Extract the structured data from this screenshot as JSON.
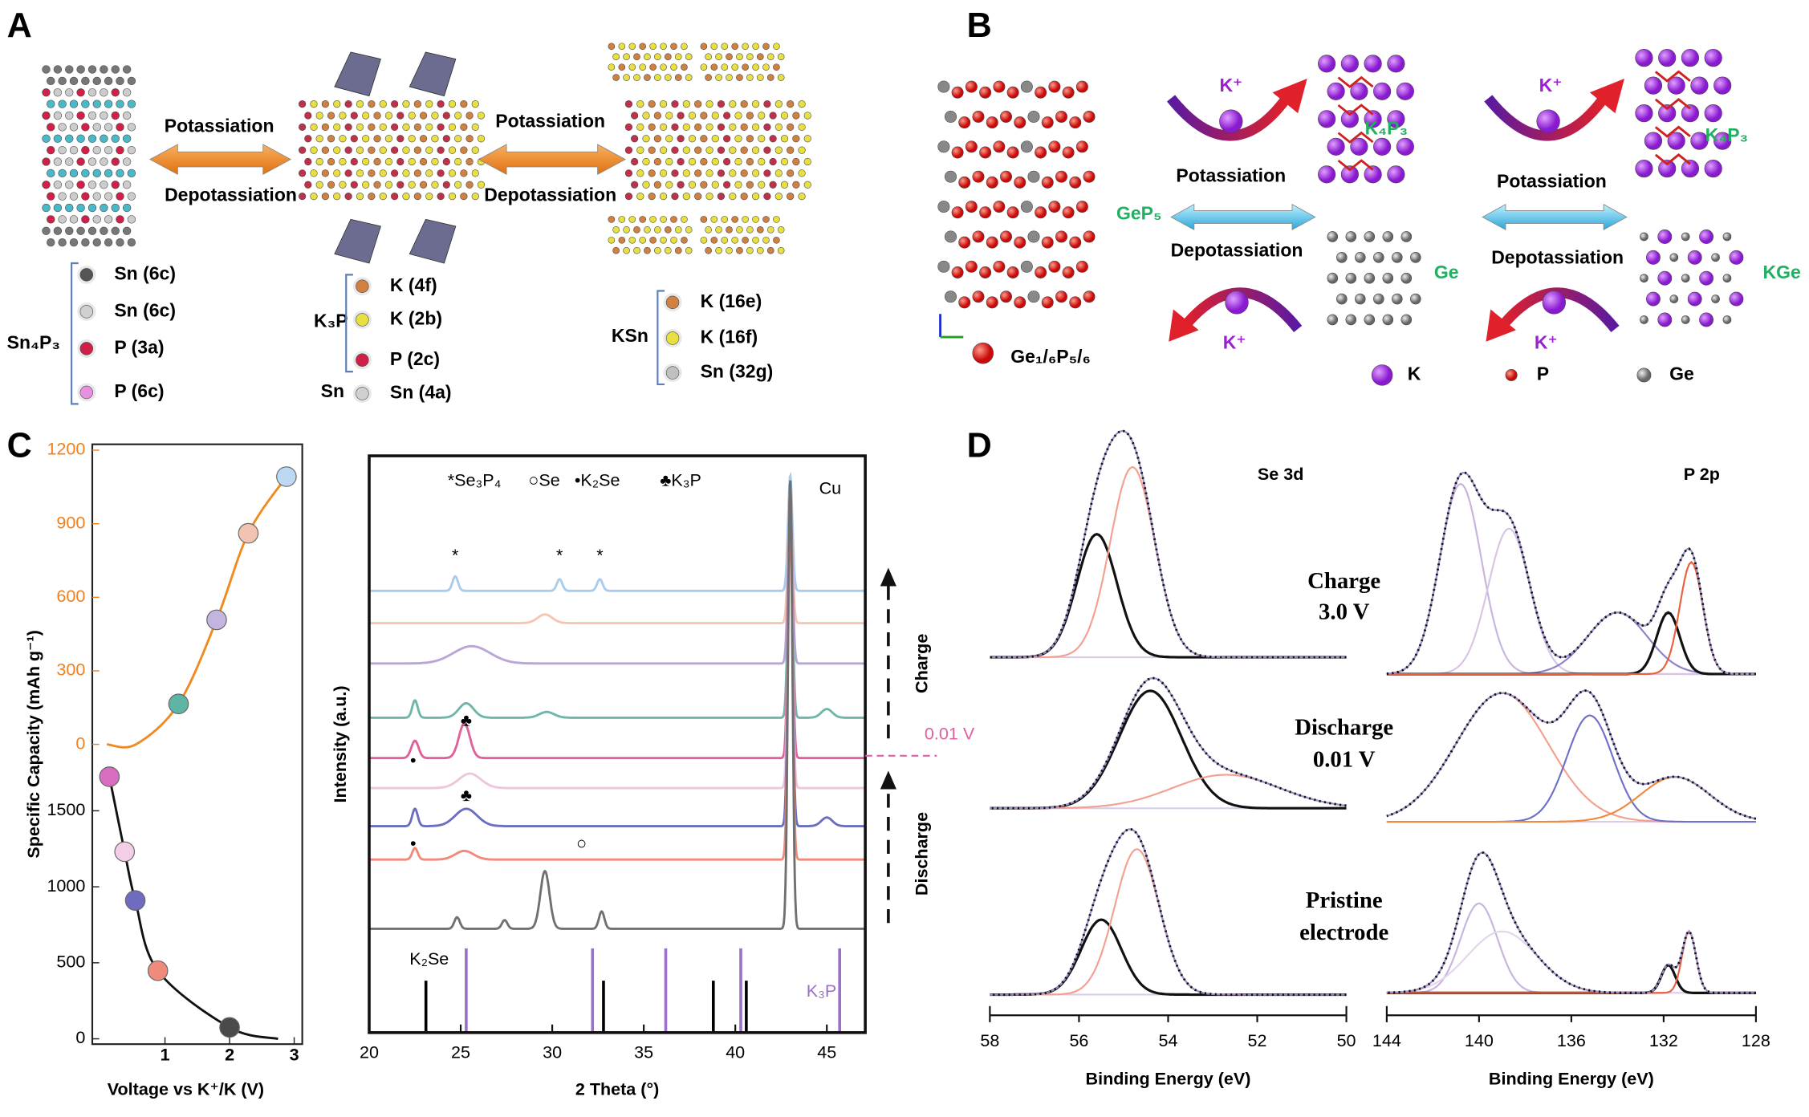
{
  "panel_a": {
    "label": "A",
    "potassiation": [
      "Potassiation",
      "Potassiation"
    ],
    "depotassiation": [
      "Depotassiation",
      "Depotassiation"
    ],
    "phases": [
      {
        "name": "Sn₄P₃",
        "sites": [
          "Sn (6c)",
          "Sn (6c)",
          "P (3a)",
          "P (6c)"
        ]
      },
      {
        "name": "K₃P",
        "sites": [
          "K (4f)",
          "K (2b)",
          "P (2c)"
        ]
      },
      {
        "name": "Sn",
        "sites": [
          "Sn (4a)"
        ]
      },
      {
        "name": "KSn",
        "sites": [
          "K (16e)",
          "K (16f)",
          "Sn (32g)"
        ]
      }
    ]
  },
  "panel_b": {
    "label": "B",
    "ion": [
      "K⁺",
      "K⁺",
      "K⁺",
      "K⁺"
    ],
    "potassiation": [
      "Potassiation",
      "Potassiation"
    ],
    "depotassiation": [
      "Depotassiation",
      "Depotassiation"
    ],
    "start": "GeP₅",
    "products": [
      "K₄P₃",
      "Ge",
      "K₄P₃",
      "KGe"
    ],
    "structure": "Ge₁/₆P₅/₆",
    "legend": [
      "K",
      "P",
      "Ge"
    ]
  },
  "panel_c": {
    "label": "C",
    "charge": "Charge",
    "discharge": "Discharge",
    "marker": "0.01 V"
  },
  "panel_d": {
    "label": "D",
    "states": [
      [
        "Charge",
        "3.0  V"
      ],
      [
        "Discharge",
        "0.01 V"
      ],
      [
        "Pristine",
        "electrode"
      ]
    ]
  },
  "chart_data": [
    {
      "type": "line",
      "xlabel": "Voltage vs K⁺/K (V)",
      "ylabel": "Specific Capacity (mAh g⁻¹)",
      "xlim": [
        -0.125,
        3.125
      ],
      "xticks": [
        1,
        2,
        3
      ],
      "ylim": [
        -35,
        1900
      ],
      "yticks": [
        0,
        500,
        1000,
        1500
      ],
      "y2lim": [
        -70,
        1224
      ],
      "y2ticks": [
        0,
        300,
        600,
        900,
        1200
      ],
      "y2color": "#f08020",
      "series": [
        {
          "color": "#111111",
          "x": [
            0.14,
            0.375,
            0.54,
            0.89,
            2.0,
            2.75
          ],
          "values": [
            1724,
            1231,
            910,
            448,
            75,
            0
          ],
          "marker_colors": [
            "#d86cc0",
            "#f2cfe6",
            "#6f6cbf",
            "#f08a7c",
            "#4a4a4a",
            null
          ]
        },
        {
          "color": "#f08a20",
          "axis": "y2",
          "x": [
            0.1,
            0.55,
            1.21,
            1.8,
            2.29,
            2.88
          ],
          "values": [
            0,
            0,
            165,
            508,
            861,
            1092
          ],
          "marker_colors": [
            null,
            null,
            "#5fb5a5",
            "#c4b4e0",
            "#f2c3b0",
            "#bcd8f2"
          ]
        }
      ]
    },
    {
      "type": "xrd",
      "xlabel": "2 Theta (°)",
      "ylabel": "Intensity (a.u.)",
      "xlim": [
        20,
        47.1
      ],
      "xticks": [
        20,
        25,
        30,
        35,
        40,
        45
      ],
      "ylim": [
        0,
        100
      ],
      "legend": [
        "*Se₃P₄",
        "○Se",
        "•K₂Se",
        "♣K₃P"
      ],
      "peak_label": "Cu",
      "marker_level": 48,
      "traces": [
        {
          "color": "#a9cbec",
          "offset": 76.6,
          "peaks": [
            [
              24.7,
              2.5,
              0.15
            ],
            [
              30.4,
              2,
              0.15
            ],
            [
              32.6,
              2,
              0.15
            ],
            [
              43,
              20,
              0.12
            ]
          ]
        },
        {
          "color": "#f6c6b2",
          "offset": 71,
          "peaks": [
            [
              29.6,
              1.5,
              0.4
            ],
            [
              43,
              22,
              0.12
            ]
          ]
        },
        {
          "color": "#b9a6d6",
          "offset": 64,
          "peaks": [
            [
              25.6,
              3,
              1.0
            ],
            [
              43,
              30,
              0.12
            ]
          ]
        },
        {
          "color": "#6fb6a8",
          "offset": 54.6,
          "peaks": [
            [
              22.5,
              3,
              0.15
            ],
            [
              25.3,
              2.5,
              0.4
            ],
            [
              29.7,
              1,
              0.4
            ],
            [
              43,
              40,
              0.12
            ],
            [
              45,
              1.5,
              0.3
            ]
          ]
        },
        {
          "color": "#e0609a",
          "offset": 47.6,
          "peaks": [
            [
              22.5,
              3,
              0.2
            ],
            [
              25.2,
              6,
              0.3
            ],
            [
              43,
              47,
              0.12
            ]
          ]
        },
        {
          "color": "#eec6dc",
          "offset": 42.4,
          "peaks": [
            [
              25.5,
              2.5,
              0.6
            ],
            [
              43,
              50,
              0.12
            ]
          ]
        },
        {
          "color": "#6a6ec0",
          "offset": 35.8,
          "peaks": [
            [
              22.5,
              3,
              0.15
            ],
            [
              25.3,
              3,
              0.6
            ],
            [
              43,
              55,
              0.12
            ],
            [
              45,
              1.5,
              0.3
            ]
          ]
        },
        {
          "color": "#f08a7a",
          "offset": 30,
          "peaks": [
            [
              22.5,
              2,
              0.15
            ],
            [
              25.2,
              1.5,
              0.5
            ],
            [
              43,
              60,
              0.12
            ]
          ]
        },
        {
          "color": "#707070",
          "offset": 18,
          "peaks": [
            [
              24.8,
              2,
              0.15
            ],
            [
              27.4,
              1.5,
              0.15
            ],
            [
              29.6,
              10,
              0.25
            ],
            [
              32.7,
              3,
              0.15
            ],
            [
              43,
              78,
              0.12
            ]
          ]
        }
      ],
      "references": [
        {
          "name": "K₂Se",
          "color": "#000000",
          "height": 9,
          "positions": [
            23.1,
            32.8,
            38.8,
            40.6
          ]
        },
        {
          "name": "K₃P",
          "color": "#9a70c8",
          "height": 14.6,
          "positions": [
            25.3,
            32.2,
            36.2,
            40.3,
            45.7
          ]
        }
      ],
      "annotations": [
        {
          "text": "*",
          "x": 24.7,
          "y": 82.6
        },
        {
          "text": "*",
          "x": 30.4,
          "y": 82.6
        },
        {
          "text": "*",
          "x": 32.6,
          "y": 82.6
        },
        {
          "text": "♣",
          "x": 25.3,
          "y": 54
        },
        {
          "text": "♣",
          "x": 25.3,
          "y": 41
        },
        {
          "text": "•",
          "x": 22.4,
          "y": 47
        },
        {
          "text": "•",
          "x": 22.4,
          "y": 32.6
        },
        {
          "text": "○",
          "x": 31.6,
          "y": 32.6
        }
      ]
    },
    {
      "type": "xps",
      "title": "Se 3d",
      "xlabel": "Binding Energy (eV)",
      "xlim": [
        58,
        50
      ],
      "xticks": [
        58,
        56,
        54,
        52,
        50
      ],
      "ylim": [
        0,
        100
      ],
      "spectra": [
        {
          "offset": 64,
          "components": [
            {
              "color": "#111111",
              "center": 55.6,
              "height": 22,
              "width": 0.45
            },
            {
              "color": "#f4a090",
              "center": 54.8,
              "height": 34,
              "width": 0.5
            }
          ]
        },
        {
          "offset": 37,
          "components": [
            {
              "color": "#111111",
              "center": 54.4,
              "height": 21,
              "width": 0.7
            },
            {
              "color": "#f4a090",
              "center": 52.7,
              "height": 6,
              "width": 1.2
            }
          ]
        },
        {
          "offset": 3.7,
          "components": [
            {
              "color": "#111111",
              "center": 55.5,
              "height": 13.4,
              "width": 0.45
            },
            {
              "color": "#f4a090",
              "center": 54.7,
              "height": 26,
              "width": 0.5
            }
          ]
        }
      ]
    },
    {
      "type": "xps",
      "title": "P 2p",
      "xlabel": "Binding Energy (eV)",
      "xlim": [
        144,
        128
      ],
      "xticks": [
        144,
        140,
        136,
        132,
        128
      ],
      "ylim": [
        0,
        100
      ],
      "spectra": [
        {
          "offset": 61,
          "components": [
            {
              "color": "#c8b4dc",
              "center": 140.8,
              "height": 34,
              "width": 0.9
            },
            {
              "color": "#d8c4e4",
              "center": 138.7,
              "height": 26,
              "width": 0.9
            },
            {
              "color": "#9080c8",
              "center": 134,
              "height": 11,
              "width": 1.3
            },
            {
              "color": "#111111",
              "center": 131.8,
              "height": 11,
              "width": 0.5
            },
            {
              "color": "#e86040",
              "center": 130.8,
              "height": 20,
              "width": 0.5
            }
          ]
        },
        {
          "offset": 34.6,
          "components": [
            {
              "color": "#f4a090",
              "center": 139,
              "height": 23,
              "width": 2
            },
            {
              "color": "#7070c8",
              "center": 135.2,
              "height": 19,
              "width": 1
            },
            {
              "color": "#f08a40",
              "center": 131.5,
              "height": 8,
              "width": 1.5
            }
          ]
        },
        {
          "offset": 4,
          "components": [
            {
              "color": "#c8b4dc",
              "center": 140,
              "height": 16,
              "width": 0.8
            },
            {
              "color": "#e4d4ec",
              "center": 139,
              "height": 11,
              "width": 1.5
            },
            {
              "color": "#111111",
              "center": 131.8,
              "height": 5,
              "width": 0.3
            },
            {
              "color": "#e86040",
              "center": 130.9,
              "height": 11,
              "width": 0.3
            }
          ]
        }
      ]
    }
  ]
}
